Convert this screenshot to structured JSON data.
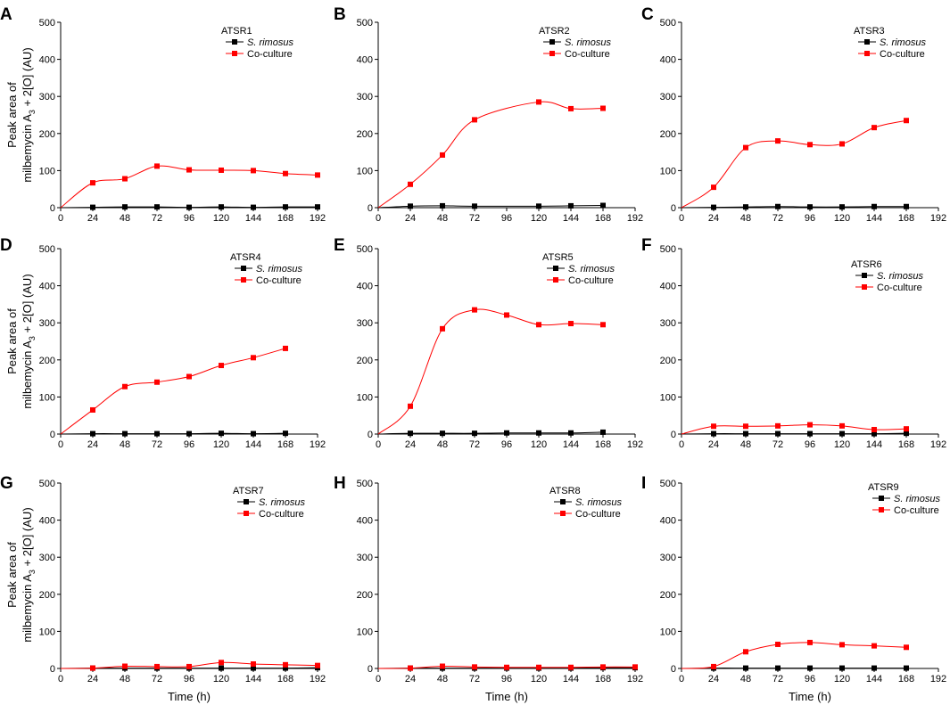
{
  "figure": {
    "y_axis_label_line1": "Peak area of",
    "y_axis_label_line2_pre": "milbemycin A",
    "y_axis_label_sub": "3",
    "y_axis_label_line2_post": " + 2[O] (AU)",
    "x_axis_label": "Time (h)"
  },
  "legend": {
    "series1": "S. rimosus",
    "series2": "Co-culture"
  },
  "colors": {
    "series1": "#000000",
    "series2": "#ff0000"
  },
  "chart_data": [
    {
      "panel": "A",
      "title": "ATSR1",
      "type": "line",
      "xlim": [
        0,
        192
      ],
      "ylim": [
        0,
        500
      ],
      "xticks": [
        0,
        24,
        48,
        72,
        96,
        120,
        144,
        168,
        192
      ],
      "yticks": [
        0,
        100,
        200,
        300,
        400,
        500
      ],
      "series": [
        {
          "name": "S. rimosus",
          "x": [
            0,
            24,
            48,
            72,
            96,
            120,
            144,
            168,
            192
          ],
          "values": [
            0,
            1,
            2,
            2,
            1,
            2,
            1,
            2,
            2
          ]
        },
        {
          "name": "Co-culture",
          "x": [
            0,
            24,
            48,
            72,
            96,
            120,
            144,
            168,
            192
          ],
          "values": [
            0,
            67,
            78,
            112,
            102,
            101,
            100,
            92,
            88
          ]
        }
      ]
    },
    {
      "panel": "B",
      "title": "ATSR2",
      "type": "line",
      "xlim": [
        0,
        192
      ],
      "ylim": [
        0,
        500
      ],
      "xticks": [
        0,
        24,
        48,
        72,
        96,
        120,
        144,
        168,
        192
      ],
      "yticks": [
        0,
        100,
        200,
        300,
        400,
        500
      ],
      "series": [
        {
          "name": "S. rimosus",
          "x": [
            0,
            24,
            48,
            72,
            120,
            144,
            168
          ],
          "values": [
            0,
            4,
            5,
            4,
            4,
            5,
            6
          ]
        },
        {
          "name": "Co-culture",
          "x": [
            0,
            24,
            48,
            72,
            120,
            144,
            168
          ],
          "values": [
            0,
            63,
            142,
            237,
            285,
            267,
            268
          ]
        }
      ]
    },
    {
      "panel": "C",
      "title": "ATSR3",
      "type": "line",
      "xlim": [
        0,
        192
      ],
      "ylim": [
        0,
        500
      ],
      "xticks": [
        0,
        24,
        48,
        72,
        96,
        120,
        144,
        168,
        192
      ],
      "yticks": [
        0,
        100,
        200,
        300,
        400,
        500
      ],
      "series": [
        {
          "name": "S. rimosus",
          "x": [
            0,
            24,
            48,
            72,
            96,
            120,
            144,
            168
          ],
          "values": [
            0,
            1,
            2,
            3,
            2,
            2,
            3,
            3
          ]
        },
        {
          "name": "Co-culture",
          "x": [
            0,
            24,
            48,
            72,
            96,
            120,
            144,
            168
          ],
          "values": [
            0,
            55,
            162,
            180,
            170,
            172,
            216,
            235
          ]
        }
      ]
    },
    {
      "panel": "D",
      "title": "ATSR4",
      "type": "line",
      "xlim": [
        0,
        192
      ],
      "ylim": [
        0,
        500
      ],
      "xticks": [
        0,
        24,
        48,
        72,
        96,
        120,
        144,
        168,
        192
      ],
      "yticks": [
        0,
        100,
        200,
        300,
        400,
        500
      ],
      "series": [
        {
          "name": "S. rimosus",
          "x": [
            0,
            24,
            48,
            72,
            96,
            120,
            144,
            168
          ],
          "values": [
            0,
            1,
            1,
            1,
            1,
            2,
            1,
            2
          ]
        },
        {
          "name": "Co-culture",
          "x": [
            0,
            24,
            48,
            72,
            96,
            120,
            144,
            168
          ],
          "values": [
            0,
            65,
            128,
            140,
            155,
            185,
            206,
            231
          ]
        }
      ]
    },
    {
      "panel": "E",
      "title": "ATSR5",
      "type": "line",
      "xlim": [
        0,
        192
      ],
      "ylim": [
        0,
        500
      ],
      "xticks": [
        0,
        24,
        48,
        72,
        96,
        120,
        144,
        168,
        192
      ],
      "yticks": [
        0,
        100,
        200,
        300,
        400,
        500
      ],
      "series": [
        {
          "name": "S. rimosus",
          "x": [
            0,
            24,
            48,
            72,
            96,
            120,
            144,
            168
          ],
          "values": [
            0,
            2,
            2,
            2,
            3,
            3,
            3,
            5
          ]
        },
        {
          "name": "Co-culture",
          "x": [
            0,
            24,
            48,
            72,
            96,
            120,
            144,
            168
          ],
          "values": [
            0,
            75,
            284,
            335,
            321,
            295,
            298,
            295
          ]
        }
      ]
    },
    {
      "panel": "F",
      "title": "ATSR6",
      "type": "line",
      "xlim": [
        0,
        192
      ],
      "ylim": [
        0,
        500
      ],
      "xticks": [
        0,
        24,
        48,
        72,
        96,
        120,
        144,
        168,
        192
      ],
      "yticks": [
        0,
        100,
        200,
        300,
        400,
        500
      ],
      "series": [
        {
          "name": "S. rimosus",
          "x": [
            0,
            24,
            48,
            72,
            96,
            120,
            144,
            168
          ],
          "values": [
            0,
            1,
            1,
            1,
            1,
            1,
            1,
            2
          ]
        },
        {
          "name": "Co-culture",
          "x": [
            0,
            24,
            48,
            72,
            96,
            120,
            144,
            168
          ],
          "values": [
            0,
            21,
            21,
            22,
            25,
            22,
            12,
            14
          ]
        }
      ]
    },
    {
      "panel": "G",
      "title": "ATSR7",
      "type": "line",
      "xlim": [
        0,
        192
      ],
      "ylim": [
        0,
        500
      ],
      "xticks": [
        0,
        24,
        48,
        72,
        96,
        120,
        144,
        168,
        192
      ],
      "yticks": [
        0,
        100,
        200,
        300,
        400,
        500
      ],
      "series": [
        {
          "name": "S. rimosus",
          "x": [
            0,
            24,
            48,
            72,
            96,
            120,
            144,
            168,
            192
          ],
          "values": [
            0,
            1,
            1,
            1,
            1,
            1,
            1,
            1,
            2
          ]
        },
        {
          "name": "Co-culture",
          "x": [
            0,
            24,
            48,
            72,
            96,
            120,
            144,
            168,
            192
          ],
          "values": [
            0,
            1,
            6,
            5,
            5,
            16,
            12,
            10,
            8
          ]
        }
      ]
    },
    {
      "panel": "H",
      "title": "ATSR8",
      "type": "line",
      "xlim": [
        0,
        192
      ],
      "ylim": [
        0,
        500
      ],
      "xticks": [
        0,
        24,
        48,
        72,
        96,
        120,
        144,
        168,
        192
      ],
      "yticks": [
        0,
        100,
        200,
        300,
        400,
        500
      ],
      "series": [
        {
          "name": "S. rimosus",
          "x": [
            0,
            24,
            48,
            72,
            96,
            120,
            144,
            168,
            192
          ],
          "values": [
            0,
            1,
            1,
            1,
            1,
            1,
            1,
            2,
            2
          ]
        },
        {
          "name": "Co-culture",
          "x": [
            0,
            24,
            48,
            72,
            96,
            120,
            144,
            168,
            192
          ],
          "values": [
            0,
            1,
            6,
            4,
            3,
            3,
            3,
            4,
            4
          ]
        }
      ]
    },
    {
      "panel": "I",
      "title": "ATSR9",
      "type": "line",
      "xlim": [
        0,
        192
      ],
      "ylim": [
        0,
        500
      ],
      "xticks": [
        0,
        24,
        48,
        72,
        96,
        120,
        144,
        168,
        192
      ],
      "yticks": [
        0,
        100,
        200,
        300,
        400,
        500
      ],
      "series": [
        {
          "name": "S. rimosus",
          "x": [
            0,
            24,
            48,
            72,
            96,
            120,
            144,
            168
          ],
          "values": [
            0,
            1,
            1,
            1,
            1,
            1,
            1,
            1
          ]
        },
        {
          "name": "Co-culture",
          "x": [
            0,
            24,
            48,
            72,
            96,
            120,
            144,
            168
          ],
          "values": [
            0,
            5,
            45,
            65,
            70,
            64,
            61,
            57
          ]
        }
      ]
    }
  ]
}
